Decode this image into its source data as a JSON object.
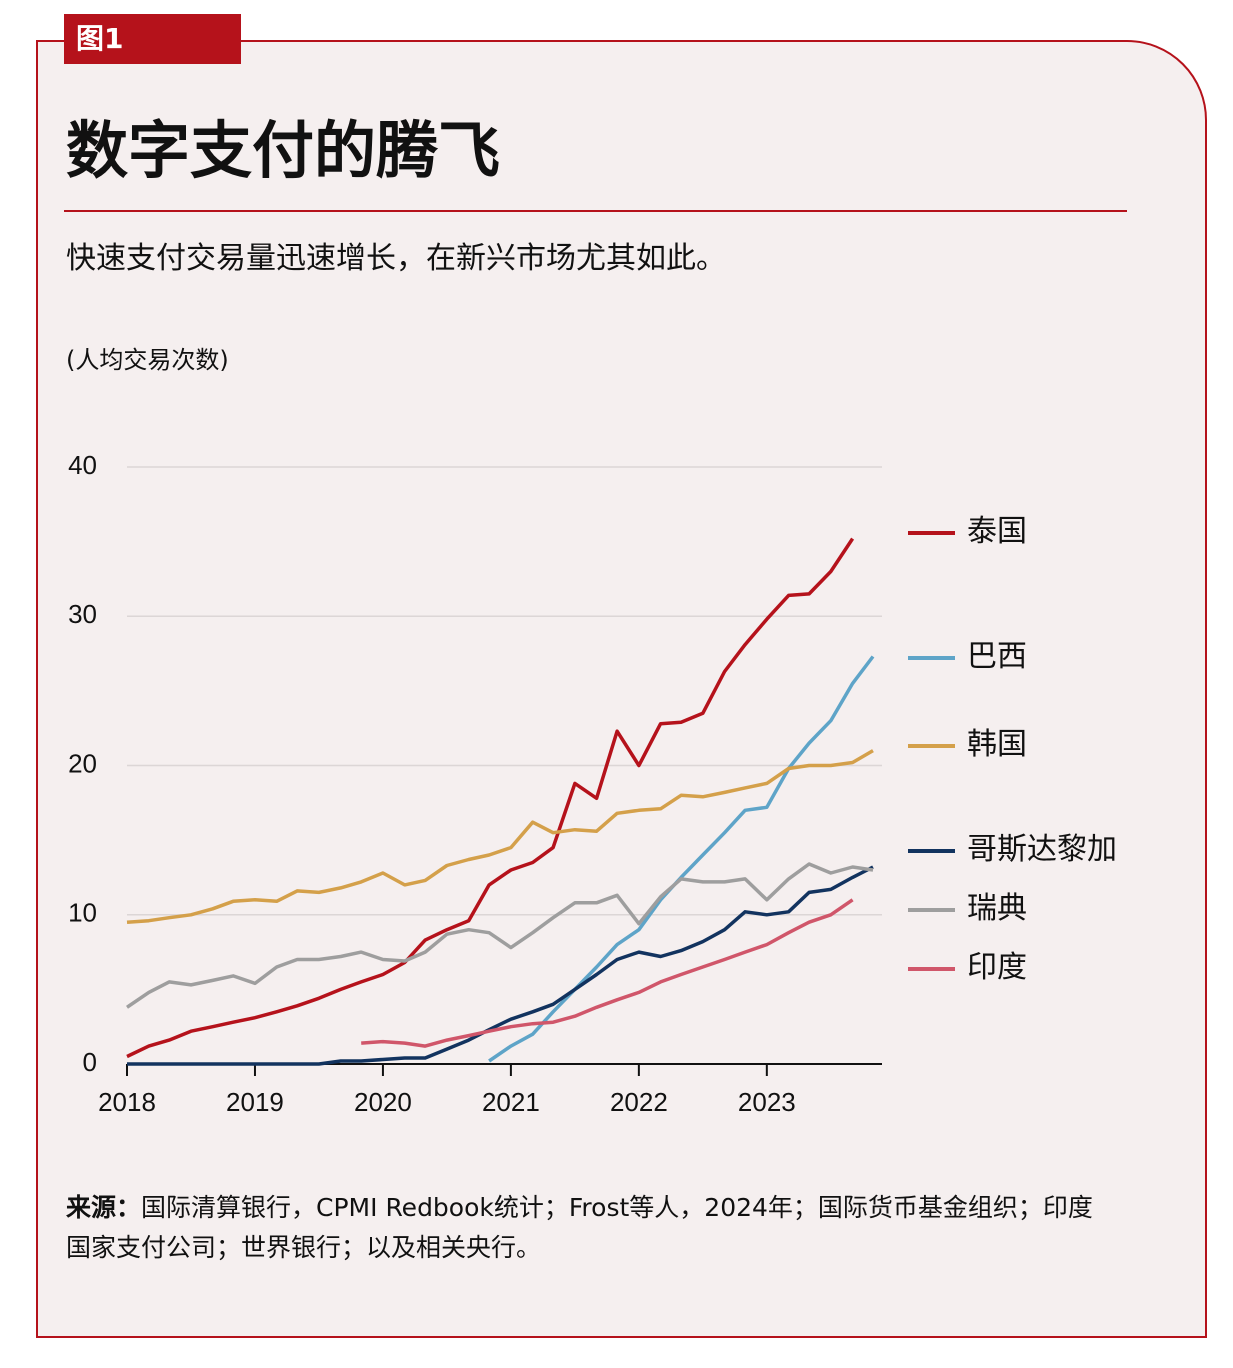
{
  "figure_label": "图1",
  "chart_data": {
    "type": "line",
    "title": "数字支付的腾飞",
    "subtitle": "快速支付交易量迅速增长，在新兴市场尤其如此。",
    "y_label": "(人均交易次数)",
    "source_label": "来源：",
    "source": "国际清算银行，CPMI Redbook统计；Frost等人，2024年；国际货币基金组织；印度国家支付公司；世界银行；以及相关央行。",
    "x": [
      2018,
      2018.17,
      2018.33,
      2018.5,
      2018.67,
      2018.83,
      2019,
      2019.17,
      2019.33,
      2019.5,
      2019.67,
      2019.83,
      2020,
      2020.17,
      2020.33,
      2020.5,
      2020.67,
      2020.83,
      2021,
      2021.17,
      2021.33,
      2021.5,
      2021.67,
      2021.83,
      2022,
      2022.17,
      2022.33,
      2022.5,
      2022.67,
      2022.83,
      2023,
      2023.17,
      2023.33,
      2023.5,
      2023.67,
      2023.83
    ],
    "xlim": [
      2018,
      2023.9
    ],
    "xticks": [
      2018,
      2019,
      2020,
      2021,
      2022,
      2023
    ],
    "ylim": [
      0,
      40
    ],
    "yticks": [
      0,
      10,
      20,
      30,
      40
    ],
    "grid": true,
    "series": [
      {
        "name": "泰国",
        "color": "#b5121b",
        "values": [
          0.5,
          1.2,
          1.6,
          2.2,
          2.5,
          2.8,
          3.1,
          3.5,
          3.9,
          4.4,
          5.0,
          5.5,
          6.0,
          6.8,
          8.3,
          9.0,
          9.6,
          12.0,
          13.0,
          13.5,
          14.5,
          18.8,
          17.8,
          22.3,
          20.0,
          22.8,
          22.9,
          23.5,
          26.3,
          28.1,
          29.8,
          31.4,
          31.5,
          33.0,
          35.2,
          null
        ]
      },
      {
        "name": "巴西",
        "color": "#5ea4c8",
        "values": [
          null,
          null,
          null,
          null,
          null,
          null,
          null,
          null,
          null,
          null,
          null,
          null,
          null,
          null,
          null,
          null,
          null,
          0.2,
          1.2,
          2.0,
          3.5,
          5.0,
          6.5,
          8.0,
          9.0,
          11.0,
          12.5,
          14.0,
          15.5,
          17.0,
          17.2,
          19.8,
          21.5,
          23.0,
          25.5,
          27.3
        ]
      },
      {
        "name": "韩国",
        "color": "#d4a04a",
        "values": [
          9.5,
          9.6,
          9.8,
          10.0,
          10.4,
          10.9,
          11.0,
          10.9,
          11.6,
          11.5,
          11.8,
          12.2,
          12.8,
          12.0,
          12.3,
          13.3,
          13.7,
          14.0,
          14.5,
          16.2,
          15.5,
          15.7,
          15.6,
          16.8,
          17.0,
          17.1,
          18.0,
          17.9,
          18.2,
          18.5,
          18.8,
          19.8,
          20.0,
          20.0,
          20.2,
          21.0
        ]
      },
      {
        "name": "哥斯达黎加",
        "color": "#12335f",
        "values": [
          0,
          0,
          0,
          0,
          0,
          0,
          0,
          0,
          0,
          0,
          0.2,
          0.2,
          0.3,
          0.4,
          0.4,
          1.0,
          1.6,
          2.3,
          3.0,
          3.5,
          4.0,
          5.0,
          6.0,
          7.0,
          7.5,
          7.2,
          7.6,
          8.2,
          9.0,
          10.2,
          10.0,
          10.2,
          11.5,
          11.7,
          12.5,
          13.2
        ]
      },
      {
        "name": "瑞典",
        "color": "#9e9e9e",
        "values": [
          3.8,
          4.8,
          5.5,
          5.3,
          5.6,
          5.9,
          5.4,
          6.5,
          7.0,
          7.0,
          7.2,
          7.5,
          7.0,
          6.9,
          7.5,
          8.7,
          9.0,
          8.8,
          7.8,
          8.8,
          9.8,
          10.8,
          10.8,
          11.3,
          9.4,
          11.2,
          12.4,
          12.2,
          12.2,
          12.4,
          11.0,
          12.4,
          13.4,
          12.8,
          13.2,
          13.0
        ]
      },
      {
        "name": "印度",
        "color": "#d0566a",
        "values": [
          null,
          null,
          null,
          null,
          null,
          null,
          null,
          null,
          null,
          null,
          null,
          1.4,
          1.5,
          1.4,
          1.2,
          1.6,
          1.9,
          2.2,
          2.5,
          2.7,
          2.8,
          3.2,
          3.8,
          4.3,
          4.8,
          5.5,
          6.0,
          6.5,
          7.0,
          7.5,
          8.0,
          8.8,
          9.5,
          10.0,
          11.0,
          null
        ]
      }
    ]
  }
}
